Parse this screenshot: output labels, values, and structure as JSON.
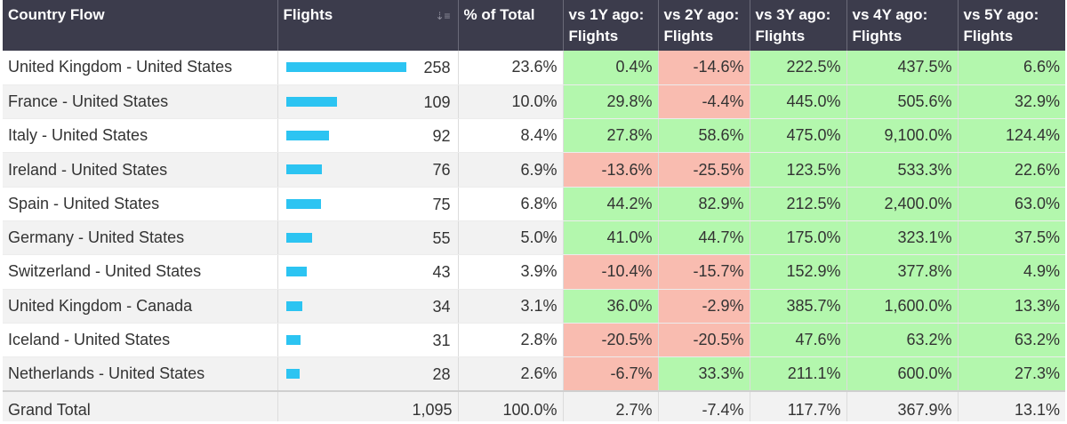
{
  "columns": [
    "Country Flow",
    "Flights",
    "% of Total",
    "vs 1Y ago:\nFlights",
    "vs 2Y ago:\nFlights",
    "vs 3Y ago:\nFlights",
    "vs 4Y ago:\nFlights",
    "vs 5Y ago:\nFlights"
  ],
  "colors": {
    "header_bg": "#3c3c4c",
    "positive": "#b3f7ad",
    "negative": "#f9bcb0",
    "bar": "#2cc4f2"
  },
  "bar_max": 258,
  "rows": [
    {
      "flow": "United Kingdom - United States",
      "flights": "258",
      "flights_value": 258,
      "pct_total": "23.6%",
      "vs": [
        "0.4%",
        "-14.6%",
        "222.5%",
        "437.5%",
        "6.6%"
      ]
    },
    {
      "flow": "France - United States",
      "flights": "109",
      "flights_value": 109,
      "pct_total": "10.0%",
      "vs": [
        "29.8%",
        "-4.4%",
        "445.0%",
        "505.6%",
        "32.9%"
      ]
    },
    {
      "flow": "Italy - United States",
      "flights": "92",
      "flights_value": 92,
      "pct_total": "8.4%",
      "vs": [
        "27.8%",
        "58.6%",
        "475.0%",
        "9,100.0%",
        "124.4%"
      ]
    },
    {
      "flow": "Ireland - United States",
      "flights": "76",
      "flights_value": 76,
      "pct_total": "6.9%",
      "vs": [
        "-13.6%",
        "-25.5%",
        "123.5%",
        "533.3%",
        "22.6%"
      ]
    },
    {
      "flow": "Spain - United States",
      "flights": "75",
      "flights_value": 75,
      "pct_total": "6.8%",
      "vs": [
        "44.2%",
        "82.9%",
        "212.5%",
        "2,400.0%",
        "63.0%"
      ]
    },
    {
      "flow": "Germany - United States",
      "flights": "55",
      "flights_value": 55,
      "pct_total": "5.0%",
      "vs": [
        "41.0%",
        "44.7%",
        "175.0%",
        "323.1%",
        "37.5%"
      ]
    },
    {
      "flow": "Switzerland - United States",
      "flights": "43",
      "flights_value": 43,
      "pct_total": "3.9%",
      "vs": [
        "-10.4%",
        "-15.7%",
        "152.9%",
        "377.8%",
        "4.9%"
      ]
    },
    {
      "flow": "United Kingdom - Canada",
      "flights": "34",
      "flights_value": 34,
      "pct_total": "3.1%",
      "vs": [
        "36.0%",
        "-2.9%",
        "385.7%",
        "1,600.0%",
        "13.3%"
      ]
    },
    {
      "flow": "Iceland - United States",
      "flights": "31",
      "flights_value": 31,
      "pct_total": "2.8%",
      "vs": [
        "-20.5%",
        "-20.5%",
        "47.6%",
        "63.2%",
        "63.2%"
      ]
    },
    {
      "flow": "Netherlands - United States",
      "flights": "28",
      "flights_value": 28,
      "pct_total": "2.6%",
      "vs": [
        "-6.7%",
        "33.3%",
        "211.1%",
        "600.0%",
        "27.3%"
      ]
    }
  ],
  "total": {
    "label": "Grand Total",
    "flights": "1,095",
    "pct_total": "100.0%",
    "vs": [
      "2.7%",
      "-7.4%",
      "117.7%",
      "367.9%",
      "13.1%"
    ]
  }
}
